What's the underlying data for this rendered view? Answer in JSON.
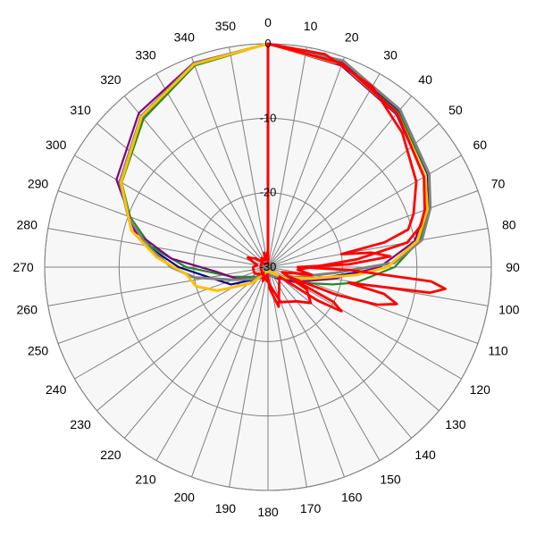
{
  "chart_data": {
    "type": "polar-line",
    "angle_labels": [
      "0",
      "10",
      "20",
      "30",
      "40",
      "50",
      "60",
      "70",
      "80",
      "90",
      "100",
      "110",
      "120",
      "130",
      "140",
      "150",
      "160",
      "170",
      "180",
      "190",
      "200",
      "210",
      "220",
      "230",
      "240",
      "250",
      "260",
      "270",
      "280",
      "290",
      "300",
      "310",
      "320",
      "330",
      "340",
      "350"
    ],
    "radial_labels": [
      "0",
      "-10",
      "-20",
      "-30"
    ],
    "radial_range": [
      -30,
      0
    ],
    "colors": {
      "grid": "#808080",
      "plot_background": "#f7f7f7",
      "series_red": "#ff0000",
      "series_blue": "#00008b",
      "series_green": "#228b22",
      "series_purple": "#7f007f",
      "series_gray": "#808080",
      "series_orange": "#ffc000"
    },
    "series": [
      {
        "color": "#00008b",
        "width": 2.2,
        "points": [
          [
            0,
            0
          ],
          [
            20,
            -0.8
          ],
          [
            40,
            -2.7
          ],
          [
            60,
            -5.2
          ],
          [
            70,
            -7
          ],
          [
            80,
            -9.5
          ],
          [
            90,
            -14
          ],
          [
            100,
            -22
          ],
          [
            110,
            -25.5
          ],
          [
            120,
            -27
          ],
          [
            140,
            -28
          ],
          [
            180,
            -29
          ],
          [
            220,
            -28
          ],
          [
            245,
            -24.5
          ],
          [
            260,
            -22
          ],
          [
            270,
            -18
          ],
          [
            280,
            -13.5
          ],
          [
            290,
            -10
          ],
          [
            300,
            -7
          ],
          [
            320,
            -3.7
          ],
          [
            340,
            -1
          ],
          [
            360,
            0
          ]
        ]
      },
      {
        "color": "#228b22",
        "width": 2.2,
        "points": [
          [
            0,
            0
          ],
          [
            20,
            -0.9
          ],
          [
            40,
            -2.8
          ],
          [
            60,
            -5.1
          ],
          [
            70,
            -6.8
          ],
          [
            80,
            -9.3
          ],
          [
            90,
            -13
          ],
          [
            100,
            -18
          ],
          [
            105,
            -21
          ],
          [
            115,
            -25
          ],
          [
            130,
            -28
          ],
          [
            180,
            -29.5
          ],
          [
            230,
            -28
          ],
          [
            255,
            -25
          ],
          [
            270,
            -19
          ],
          [
            280,
            -14
          ],
          [
            290,
            -10.3
          ],
          [
            300,
            -7.3
          ],
          [
            320,
            -4
          ],
          [
            340,
            -1.2
          ],
          [
            360,
            0
          ]
        ]
      },
      {
        "color": "#7f007f",
        "width": 2.2,
        "points": [
          [
            0,
            0
          ],
          [
            20,
            -1.2
          ],
          [
            40,
            -3.2
          ],
          [
            60,
            -5.7
          ],
          [
            70,
            -7.5
          ],
          [
            80,
            -10
          ],
          [
            90,
            -15
          ],
          [
            100,
            -21
          ],
          [
            120,
            -26
          ],
          [
            150,
            -28.5
          ],
          [
            180,
            -29
          ],
          [
            220,
            -28
          ],
          [
            250,
            -25.5
          ],
          [
            265,
            -23
          ],
          [
            275,
            -17
          ],
          [
            285,
            -11.5
          ],
          [
            300,
            -6.5
          ],
          [
            320,
            -3
          ],
          [
            340,
            -0.8
          ],
          [
            360,
            0
          ]
        ]
      },
      {
        "color": "#808080",
        "width": 3,
        "points": [
          [
            0,
            0
          ],
          [
            20,
            -0.5
          ],
          [
            40,
            -2.4
          ],
          [
            60,
            -5
          ],
          [
            70,
            -6.8
          ],
          [
            80,
            -9
          ],
          [
            88,
            -13
          ],
          [
            95,
            -21
          ],
          [
            110,
            -26
          ],
          [
            150,
            -28.5
          ],
          [
            200,
            -29
          ],
          [
            230,
            -27.5
          ],
          [
            250,
            -25
          ],
          [
            262,
            -20
          ],
          [
            270,
            -17
          ],
          [
            280,
            -13.5
          ],
          [
            290,
            -10
          ],
          [
            300,
            -7
          ],
          [
            320,
            -3.5
          ],
          [
            340,
            -0.9
          ],
          [
            360,
            0
          ]
        ]
      },
      {
        "color": "#ffc000",
        "width": 3,
        "points": [
          [
            0,
            0
          ],
          [
            20,
            -1
          ],
          [
            40,
            -3
          ],
          [
            60,
            -5.6
          ],
          [
            70,
            -7.2
          ],
          [
            80,
            -9.6
          ],
          [
            90,
            -14
          ],
          [
            95,
            -18
          ],
          [
            105,
            -24
          ],
          [
            125,
            -27.5
          ],
          [
            180,
            -29.5
          ],
          [
            225,
            -27
          ],
          [
            245,
            -22.5
          ],
          [
            255,
            -20
          ],
          [
            265,
            -19
          ],
          [
            275,
            -15
          ],
          [
            285,
            -11
          ],
          [
            300,
            -7.2
          ],
          [
            320,
            -3.6
          ],
          [
            340,
            -1
          ],
          [
            360,
            0
          ]
        ]
      },
      {
        "color": "#ff0000",
        "width": 2.8,
        "points": [
          [
            0,
            0
          ],
          [
            15,
            -0.4
          ],
          [
            30,
            -2
          ],
          [
            45,
            -4.5
          ],
          [
            60,
            -7
          ],
          [
            70,
            -9.2
          ],
          [
            75,
            -10.5
          ],
          [
            78,
            -14
          ],
          [
            80,
            -20
          ],
          [
            82,
            -16
          ],
          [
            85,
            -13.5
          ],
          [
            88,
            -19
          ],
          [
            90,
            -26
          ],
          [
            92,
            -19
          ],
          [
            95,
            -8
          ],
          [
            97,
            -6
          ],
          [
            99,
            -8
          ],
          [
            101,
            -19
          ],
          [
            103,
            -14
          ],
          [
            106,
            -12
          ],
          [
            109,
            -14.5
          ],
          [
            112,
            -20
          ],
          [
            115,
            -27
          ],
          [
            118,
            -20
          ],
          [
            121,
            -18.5
          ],
          [
            124,
            -22
          ],
          [
            130,
            -28
          ],
          [
            150,
            -27
          ],
          [
            165,
            -24.5
          ],
          [
            175,
            -27
          ],
          [
            185,
            -29
          ],
          [
            200,
            -28
          ],
          [
            215,
            -29
          ],
          [
            230,
            -28.5
          ],
          [
            245,
            -28
          ],
          [
            260,
            -28
          ],
          [
            270,
            -28
          ],
          [
            280,
            -28.5
          ],
          [
            295,
            -27
          ],
          [
            305,
            -28
          ],
          [
            315,
            -29
          ],
          [
            325,
            -28.5
          ],
          [
            335,
            -29
          ],
          [
            345,
            -28
          ],
          [
            352,
            -29
          ],
          [
            358,
            -28
          ],
          [
            360,
            -29
          ]
        ]
      },
      {
        "color": "#ff0000",
        "width": 2.8,
        "points": [
          [
            0,
            0
          ],
          [
            20,
            -0.9
          ],
          [
            40,
            -3
          ],
          [
            60,
            -5.8
          ],
          [
            70,
            -7.6
          ],
          [
            75,
            -8.8
          ],
          [
            80,
            -11
          ],
          [
            85,
            -18
          ],
          [
            90,
            -24
          ],
          [
            95,
            -26
          ],
          [
            100,
            -24
          ],
          [
            110,
            -28
          ],
          [
            120,
            -24
          ],
          [
            130,
            -22.5
          ],
          [
            140,
            -24
          ],
          [
            160,
            -25
          ],
          [
            180,
            -28
          ],
          [
            200,
            -28.5
          ],
          [
            240,
            -29
          ],
          [
            270,
            -29
          ],
          [
            300,
            -29
          ],
          [
            330,
            -29.5
          ],
          [
            360,
            -29.5
          ]
        ]
      }
    ]
  }
}
